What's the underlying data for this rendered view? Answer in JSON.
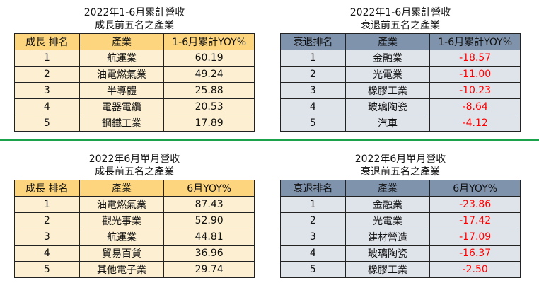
{
  "panels": [
    {
      "title1": "2022年1-6月累計營收",
      "title2": "成長前五名之產業",
      "headers": [
        "成長 排名",
        "產業",
        "1-6月累計YOY%"
      ],
      "rows": [
        {
          "rank": "1",
          "industry": "航運業",
          "yoy": "60.19"
        },
        {
          "rank": "2",
          "industry": "油電燃氣業",
          "yoy": "49.24"
        },
        {
          "rank": "3",
          "industry": "半導體",
          "yoy": "25.88"
        },
        {
          "rank": "4",
          "industry": "電器電纜",
          "yoy": "20.53"
        },
        {
          "rank": "5",
          "industry": "鋼鐵工業",
          "yoy": "17.89"
        }
      ]
    },
    {
      "title1": "2022年1-6月累計營收",
      "title2": "衰退前五名之產業",
      "headers": [
        "衰退排名",
        "產業",
        "1-6月累計YOY%"
      ],
      "rows": [
        {
          "rank": "1",
          "industry": "金融業",
          "yoy": "-18.57"
        },
        {
          "rank": "2",
          "industry": "光電業",
          "yoy": "-11.00"
        },
        {
          "rank": "3",
          "industry": "橡膠工業",
          "yoy": "-10.23"
        },
        {
          "rank": "4",
          "industry": "玻璃陶瓷",
          "yoy": "-8.64"
        },
        {
          "rank": "5",
          "industry": "汽車",
          "yoy": "-4.12"
        }
      ]
    },
    {
      "title1": "2022年6月單月營收",
      "title2": "成長前五名之產業",
      "headers": [
        "成長 排名",
        "產業",
        "6月YOY%"
      ],
      "rows": [
        {
          "rank": "1",
          "industry": "油電燃氣業",
          "yoy": "87.43"
        },
        {
          "rank": "2",
          "industry": "觀光事業",
          "yoy": "52.90"
        },
        {
          "rank": "3",
          "industry": "航運業",
          "yoy": "44.81"
        },
        {
          "rank": "4",
          "industry": "貿易百貨",
          "yoy": "36.96"
        },
        {
          "rank": "5",
          "industry": "其他電子業",
          "yoy": "29.74"
        }
      ]
    },
    {
      "title1": "2022年6月單月營收",
      "title2": "衰退前五名之產業",
      "headers": [
        "衰退排名",
        "產業",
        "6月YOY%"
      ],
      "rows": [
        {
          "rank": "1",
          "industry": "金融業",
          "yoy": "-23.86"
        },
        {
          "rank": "2",
          "industry": "光電業",
          "yoy": "-17.42"
        },
        {
          "rank": "3",
          "industry": "建材營造",
          "yoy": "-17.09"
        },
        {
          "rank": "4",
          "industry": "玻璃陶瓷",
          "yoy": "-16.37"
        },
        {
          "rank": "5",
          "industry": "橡膠工業",
          "yoy": "-2.50"
        }
      ]
    }
  ],
  "colors": {
    "growth_header": "#fcd57e",
    "growth_cell": "#fdf0d2",
    "decline_header": "#7f93ad",
    "decline_cell": "#dfe3ea",
    "negative_text": "#ff0000",
    "divider": "#1aa34a"
  }
}
